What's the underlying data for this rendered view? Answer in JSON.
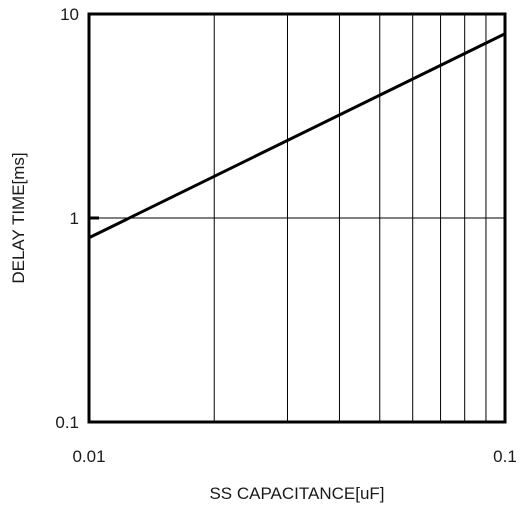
{
  "chart_data": {
    "type": "line",
    "title": "",
    "xlabel": "SS CAPACITANCE[uF]",
    "ylabel": "DELAY TIME[ms]",
    "x_scale": "log",
    "y_scale": "log",
    "xlim": [
      0.01,
      0.1
    ],
    "ylim": [
      0.1,
      10
    ],
    "x_ticks": [
      "0.01",
      "0.1"
    ],
    "y_ticks": [
      "0.1",
      "1",
      "10"
    ],
    "grid": true,
    "legend": "none",
    "line_color": "#000000",
    "grid_color": "#000000",
    "series": [
      {
        "x": [
          0.01,
          0.1
        ],
        "y": [
          0.8,
          8
        ]
      }
    ]
  }
}
